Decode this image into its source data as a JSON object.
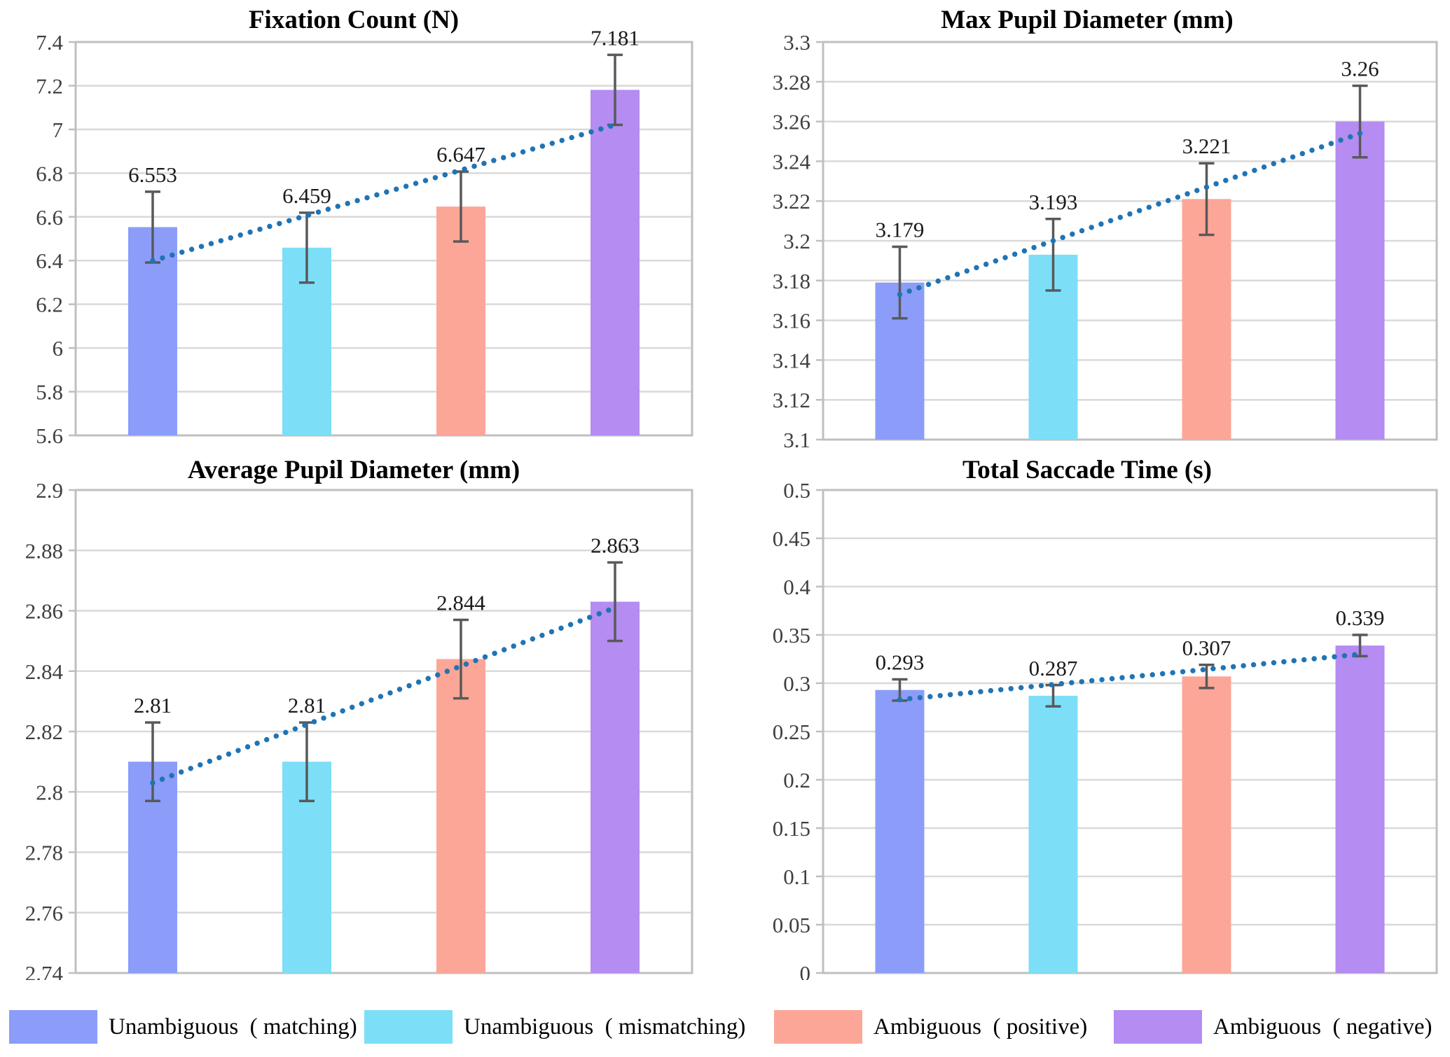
{
  "colors": {
    "series": [
      "#8B9DF9",
      "#7CDFF7",
      "#FCA698",
      "#B48CF2"
    ],
    "trendline": "#2074B4",
    "error_bar": "#595959",
    "gridline": "#D9D9D9",
    "plot_border": "#BFBFBF",
    "tick_text": "#3F3F3F",
    "label_text": "#1A1A1A",
    "title_text": "#000000",
    "background": "#FFFFFF"
  },
  "legend": {
    "entries": [
      {
        "label": "Unambiguous  ( matching)",
        "color": "#8B9DF9"
      },
      {
        "label": "Unambiguous  ( mismatching)",
        "color": "#7CDFF7"
      },
      {
        "label": "Ambiguous  ( positive)",
        "color": "#FCA698"
      },
      {
        "label": "Ambiguous  ( negative)",
        "color": "#B48CF2"
      }
    ]
  },
  "chart_data": [
    {
      "type": "bar",
      "title": "Fixation Count (N)",
      "categories": [
        "Unambiguous (matching)",
        "Unambiguous (mismatching)",
        "Ambiguous (positive)",
        "Ambiguous (negative)"
      ],
      "values": [
        6.553,
        6.459,
        6.647,
        7.181
      ],
      "data_labels": [
        "6.553",
        "6.459",
        "6.647",
        "7.181"
      ],
      "errors": [
        0.162,
        0.16,
        0.16,
        0.16
      ],
      "ylim": [
        5.6,
        7.4
      ],
      "ystep": 0.2,
      "ytick_labels": [
        "7.4",
        "7.2",
        "7",
        "6.8",
        "6.6",
        "6.4",
        "6.2",
        "6",
        "5.8",
        "5.6"
      ],
      "grid": true,
      "legend_position": "shared-bottom",
      "trendline": {
        "type": "linear",
        "style": "dotted",
        "y_start": 6.399,
        "y_end": 7.021
      }
    },
    {
      "type": "bar",
      "title": "Max Pupil Diameter (mm)",
      "categories": [
        "Unambiguous (matching)",
        "Unambiguous (mismatching)",
        "Ambiguous (positive)",
        "Ambiguous (negative)"
      ],
      "values": [
        3.179,
        3.193,
        3.221,
        3.26
      ],
      "data_labels": [
        "3.179",
        "3.193",
        "3.221",
        "3.26"
      ],
      "errors": [
        0.018,
        0.018,
        0.018,
        0.018
      ],
      "ylim": [
        3.1,
        3.3
      ],
      "ystep": 0.02,
      "ytick_labels": [
        "3.3",
        "3.28",
        "3.26",
        "3.24",
        "3.22",
        "3.2",
        "3.18",
        "3.16",
        "3.14",
        "3.12",
        "3.1"
      ],
      "grid": true,
      "legend_position": "shared-bottom",
      "trendline": {
        "type": "linear",
        "style": "dotted",
        "y_start": 3.173,
        "y_end": 3.254
      }
    },
    {
      "type": "bar",
      "title": "Average Pupil Diameter (mm)",
      "categories": [
        "Unambiguous (matching)",
        "Unambiguous (mismatching)",
        "Ambiguous (positive)",
        "Ambiguous (negative)"
      ],
      "values": [
        2.81,
        2.81,
        2.844,
        2.863
      ],
      "data_labels": [
        "2.81",
        "2.81",
        "2.844",
        "2.863"
      ],
      "errors": [
        0.013,
        0.013,
        0.013,
        0.013
      ],
      "ylim": [
        2.74,
        2.9
      ],
      "ystep": 0.02,
      "ytick_labels": [
        "2.9",
        "2.88",
        "2.86",
        "2.84",
        "2.82",
        "2.8",
        "2.78",
        "2.76",
        "2.74"
      ],
      "grid": true,
      "legend_position": "shared-bottom",
      "trendline": {
        "type": "linear",
        "style": "dotted",
        "y_start": 2.803,
        "y_end": 2.861
      }
    },
    {
      "type": "bar",
      "title": "Total Saccade Time (s)",
      "categories": [
        "Unambiguous (matching)",
        "Unambiguous (mismatching)",
        "Ambiguous (positive)",
        "Ambiguous (negative)"
      ],
      "values": [
        0.293,
        0.287,
        0.307,
        0.339
      ],
      "data_labels": [
        "0.293",
        "0.287",
        "0.307",
        "0.339"
      ],
      "errors": [
        0.011,
        0.011,
        0.012,
        0.011
      ],
      "ylim": [
        0,
        0.5
      ],
      "ystep": 0.05,
      "ytick_labels": [
        "0.5",
        "0.45",
        "0.4",
        "0.35",
        "0.3",
        "0.25",
        "0.2",
        "0.15",
        "0.1",
        "0.05",
        "0"
      ],
      "grid": true,
      "legend_position": "shared-bottom",
      "trendline": {
        "type": "linear",
        "style": "dotted",
        "y_start": 0.283,
        "y_end": 0.33
      }
    }
  ]
}
